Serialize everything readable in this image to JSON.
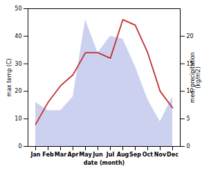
{
  "chart_data": {
    "type": "area",
    "categories": [
      "Jan",
      "Feb",
      "Mar",
      "Apr",
      "May",
      "Jun",
      "Jul",
      "Aug",
      "Sep",
      "Oct",
      "Nov",
      "Dec"
    ],
    "series": [
      {
        "type": "area",
        "color": "#b0b8e8",
        "values": [
          16,
          13,
          13,
          18,
          46,
          34,
          40,
          39,
          29,
          17,
          9,
          18
        ]
      },
      {
        "type": "line",
        "color": "#c03030",
        "axis": "y2",
        "values": [
          4,
          8,
          11,
          13,
          17,
          17,
          16,
          23,
          22,
          17,
          10,
          7
        ]
      }
    ],
    "xlabel": "date (month)",
    "ylabel": "max temp (C)",
    "y2label": "med. precipitation\n(kg/m2)",
    "ylim": [
      0,
      50
    ],
    "yticks": [
      0,
      10,
      20,
      30,
      40,
      50
    ],
    "y2lim": [
      0,
      25
    ],
    "y2ticks": [
      0,
      5,
      10,
      15,
      20
    ]
  }
}
